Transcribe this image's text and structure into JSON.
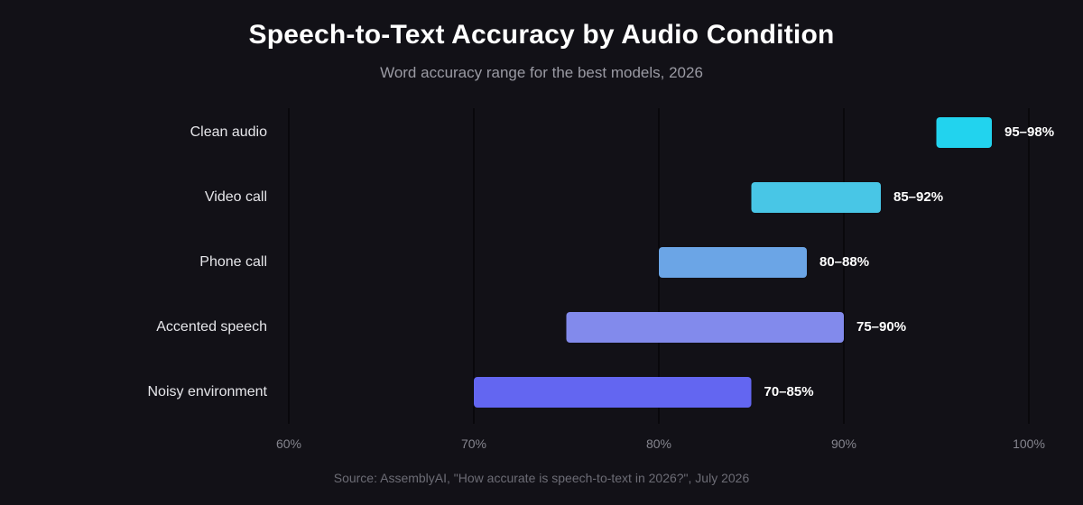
{
  "chart_data": {
    "type": "bar",
    "orientation": "horizontal-range",
    "title": "Speech-to-Text Accuracy by Audio Condition",
    "subtitle": "Word accuracy range for the best models, 2026",
    "source": "Source: AssemblyAI, \"How accurate is speech-to-text in 2026?\", July 2026",
    "xlim": [
      60,
      100
    ],
    "x_ticks": [
      {
        "value": 60,
        "label": "60%"
      },
      {
        "value": 70,
        "label": "70%"
      },
      {
        "value": 80,
        "label": "80%"
      },
      {
        "value": 90,
        "label": "90%"
      },
      {
        "value": 100,
        "label": "100%"
      }
    ],
    "grid": true,
    "categories": [
      "Clean audio",
      "Video call",
      "Phone call",
      "Accented speech",
      "Noisy environment"
    ],
    "ranges": [
      {
        "low": 95,
        "high": 98,
        "label": "95–98%",
        "color": "#22d3ee"
      },
      {
        "low": 85,
        "high": 92,
        "label": "85–92%",
        "color": "#48c6e6"
      },
      {
        "low": 80,
        "high": 88,
        "label": "80–88%",
        "color": "#6ba5e6"
      },
      {
        "low": 75,
        "high": 90,
        "label": "75–90%",
        "color": "#828aec"
      },
      {
        "low": 70,
        "high": 85,
        "label": "70–85%",
        "color": "#6366f1"
      }
    ]
  }
}
